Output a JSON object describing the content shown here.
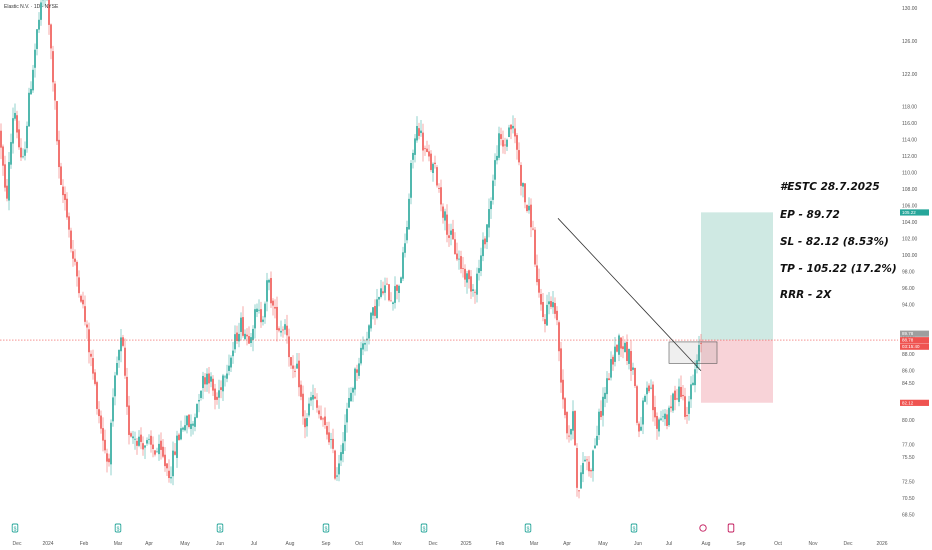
{
  "header": {
    "symbol_line": "Elastic N.V. · 1D · NYSE"
  },
  "colors": {
    "up": "#26a69a",
    "down": "#ef5350",
    "reward_zone": "#cfe9e3",
    "risk_zone": "#f8d3d8",
    "price_line": "#ef5350",
    "trendline": "#333333",
    "pivot_box": "#555555"
  },
  "trade_note": {
    "lines": [
      "#ESTC 28.7.2025",
      "EP - 89.72",
      "SL - 82.12 (8.53%)",
      "TP - 105.22 (17.2%)",
      "RRR - 2X"
    ]
  },
  "price_tags": {
    "current_a": "89.78",
    "current_b": "88.78",
    "countdown": "03:15:40",
    "stop": "82.12",
    "target": "105.22"
  },
  "icons": [
    "earnings-icon",
    "dividend-icon"
  ],
  "chart_data": {
    "type": "candlestick",
    "title": "",
    "xlabel": "",
    "ylabel": "",
    "ylim": [
      68.5,
      130.5
    ],
    "y_ticks": [
      68.5,
      70.5,
      72.5,
      75.5,
      77.0,
      80.0,
      82.0,
      84.5,
      86.0,
      88.0,
      90.0,
      94.0,
      96.0,
      98.0,
      100.0,
      102.0,
      104.0,
      106.0,
      108.0,
      110.0,
      112.0,
      114.0,
      116.0,
      118.0,
      122.0,
      126.0,
      130.0
    ],
    "x_labels": [
      "Dec",
      "2024",
      "Feb",
      "Mar",
      "Apr",
      "May",
      "Jun",
      "Jul",
      "Aug",
      "Sep",
      "Oct",
      "Nov",
      "Dec",
      "2025",
      "Feb",
      "Mar",
      "Apr",
      "May",
      "Jun",
      "Jul",
      "Aug",
      "Sep",
      "Oct",
      "Nov",
      "Dec",
      "2026"
    ],
    "x_label_pos": [
      17,
      48,
      84,
      118,
      149,
      185,
      220,
      254,
      290,
      326,
      359,
      397,
      433,
      466,
      500,
      534,
      567,
      603,
      638,
      669,
      706,
      741,
      778,
      813,
      848,
      882
    ],
    "earnings_markers": [
      15,
      118,
      220,
      326,
      424,
      528,
      634
    ],
    "dividend_markers": [
      703,
      731
    ],
    "anchors": [
      [
        0,
        115.0
      ],
      [
        6,
        106.0
      ],
      [
        14,
        118.5
      ],
      [
        22,
        110.0
      ],
      [
        30,
        120.0
      ],
      [
        38,
        128.0
      ],
      [
        46,
        132.5
      ],
      [
        54,
        120.0
      ],
      [
        60,
        108.0
      ],
      [
        66,
        106.5
      ],
      [
        72,
        100.0
      ],
      [
        80,
        96.0
      ],
      [
        90,
        88.0
      ],
      [
        100,
        80.0
      ],
      [
        108,
        74.5
      ],
      [
        116,
        86.0
      ],
      [
        122,
        90.0
      ],
      [
        128,
        79.0
      ],
      [
        136,
        78.0
      ],
      [
        146,
        77.0
      ],
      [
        160,
        76.0
      ],
      [
        170,
        73.5
      ],
      [
        176,
        77.0
      ],
      [
        184,
        80.0
      ],
      [
        192,
        79.0
      ],
      [
        200,
        84.0
      ],
      [
        208,
        86.0
      ],
      [
        216,
        82.0
      ],
      [
        224,
        86.0
      ],
      [
        232,
        88.0
      ],
      [
        240,
        92.0
      ],
      [
        248,
        90.0
      ],
      [
        256,
        93.0
      ],
      [
        262,
        92.5
      ],
      [
        268,
        97.0
      ],
      [
        274,
        93.0
      ],
      [
        280,
        91.0
      ],
      [
        286,
        92.0
      ],
      [
        292,
        85.0
      ],
      [
        298,
        86.0
      ],
      [
        304,
        79.0
      ],
      [
        312,
        83.0
      ],
      [
        318,
        81.0
      ],
      [
        324,
        79.0
      ],
      [
        330,
        78.0
      ],
      [
        336,
        73.0
      ],
      [
        344,
        79.0
      ],
      [
        352,
        84.0
      ],
      [
        360,
        88.0
      ],
      [
        368,
        91.0
      ],
      [
        376,
        94.0
      ],
      [
        384,
        96.0
      ],
      [
        392,
        95.0
      ],
      [
        400,
        97.0
      ],
      [
        406,
        102.0
      ],
      [
        412,
        112.0
      ],
      [
        418,
        116.0
      ],
      [
        424,
        113.0
      ],
      [
        430,
        111.0
      ],
      [
        436,
        110.0
      ],
      [
        442,
        106.0
      ],
      [
        448,
        103.0
      ],
      [
        454,
        101.0
      ],
      [
        460,
        99.0
      ],
      [
        468,
        97.0
      ],
      [
        474,
        96.0
      ],
      [
        480,
        99.0
      ],
      [
        486,
        103.0
      ],
      [
        492,
        108.0
      ],
      [
        498,
        114.0
      ],
      [
        504,
        113.0
      ],
      [
        510,
        116.0
      ],
      [
        516,
        114.0
      ],
      [
        520,
        110.0
      ],
      [
        526,
        106.0
      ],
      [
        532,
        104.0
      ],
      [
        538,
        95.0
      ],
      [
        544,
        92.0
      ],
      [
        550,
        95.0
      ],
      [
        556,
        93.0
      ],
      [
        562,
        84.0
      ],
      [
        568,
        78.0
      ],
      [
        574,
        80.5
      ],
      [
        578,
        70.0
      ],
      [
        584,
        76.0
      ],
      [
        590,
        74.0
      ],
      [
        596,
        78.0
      ],
      [
        602,
        82.0
      ],
      [
        608,
        85.0
      ],
      [
        614,
        88.0
      ],
      [
        620,
        90.0
      ],
      [
        628,
        88.0
      ],
      [
        634,
        86.0
      ],
      [
        638,
        78.0
      ],
      [
        644,
        82.0
      ],
      [
        650,
        84.0
      ],
      [
        656,
        79.0
      ],
      [
        662,
        81.0
      ],
      [
        668,
        80.0
      ],
      [
        674,
        83.0
      ],
      [
        680,
        84.0
      ],
      [
        686,
        81.0
      ],
      [
        692,
        84.0
      ],
      [
        698,
        87.5
      ],
      [
        701,
        89.72
      ]
    ],
    "trade": {
      "entry": 89.72,
      "stop_loss": 82.12,
      "take_profit": 105.22,
      "stop_pct": 8.53,
      "target_pct": 17.2,
      "reward_risk": "2X",
      "date": "28.7.2025"
    },
    "trendline": [
      [
        558,
        104.5
      ],
      [
        701,
        86.0
      ]
    ],
    "grid": false,
    "legend": "none"
  }
}
